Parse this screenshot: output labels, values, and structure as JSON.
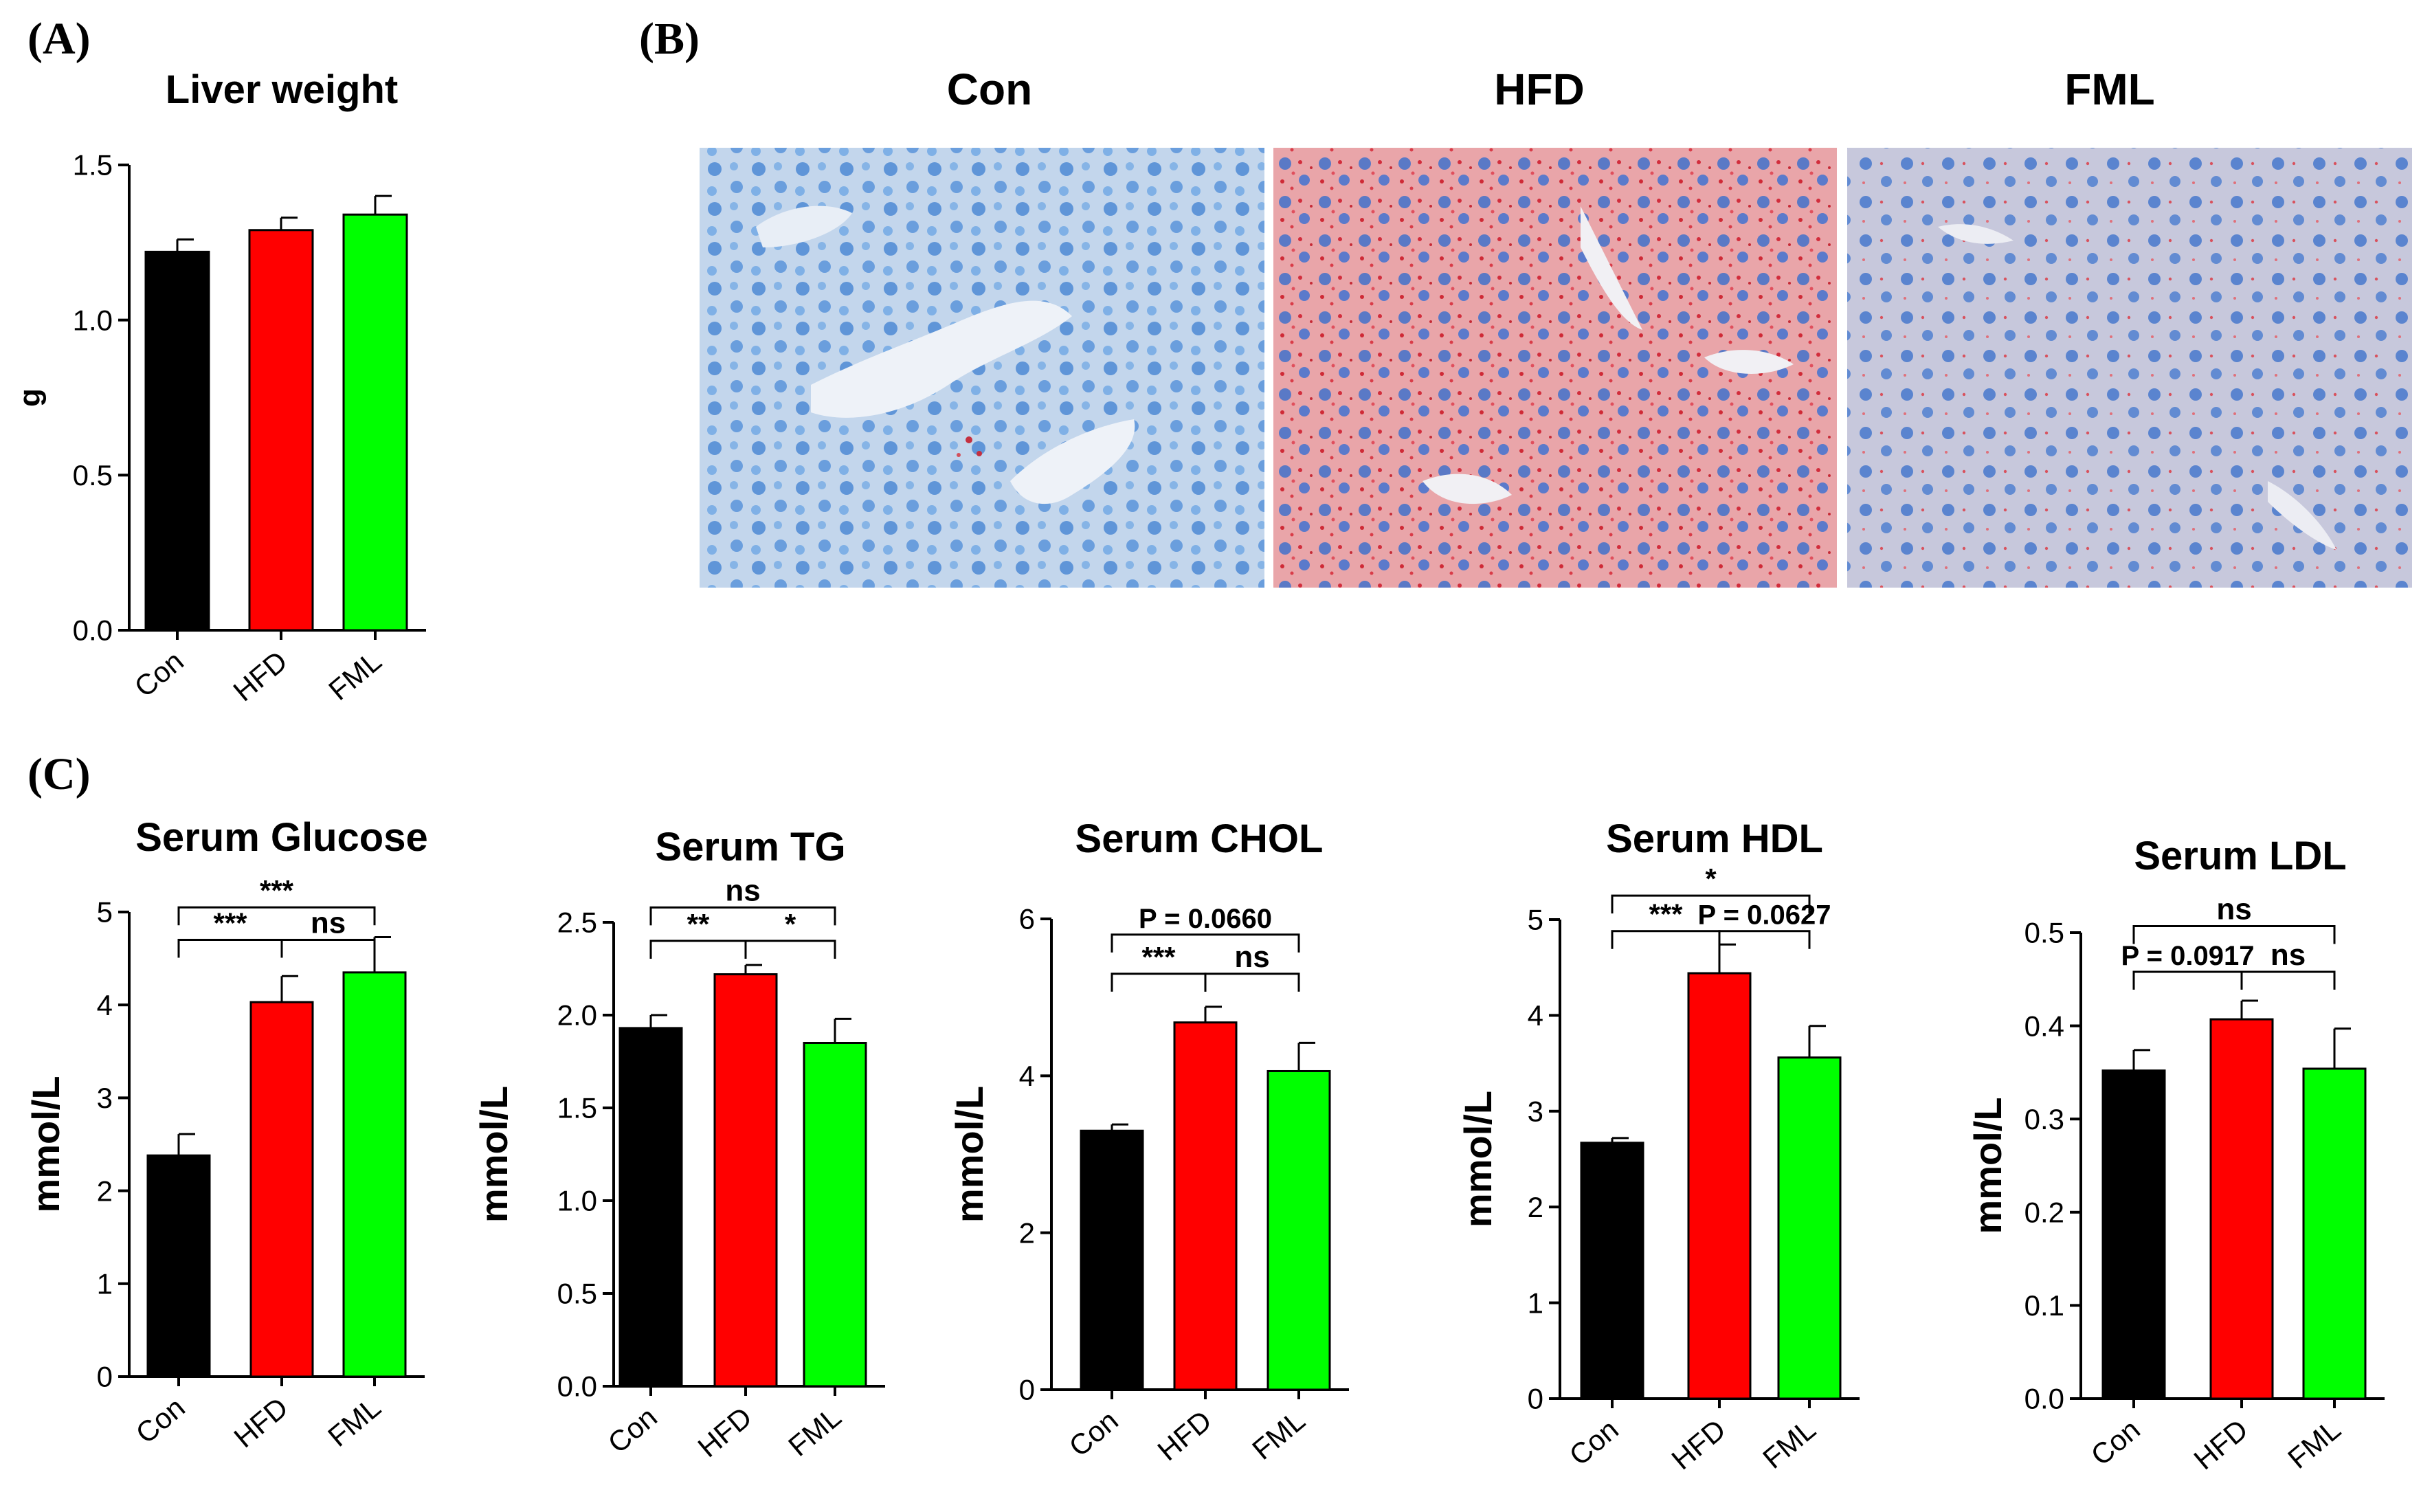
{
  "panel_labels": {
    "a": "(A)",
    "b": "(B)",
    "c": "(C)"
  },
  "histology": {
    "titles": [
      "Con",
      "HFD",
      "FML"
    ]
  },
  "colors": {
    "Con": "#000000",
    "HFD": "#ff0000",
    "FML": "#00ff00"
  },
  "chart_data": [
    {
      "id": "liver",
      "type": "bar",
      "title": "Liver weight",
      "ylabel": "g",
      "categories": [
        "Con",
        "HFD",
        "FML"
      ],
      "values": [
        1.22,
        1.29,
        1.34
      ],
      "errors": [
        0.04,
        0.04,
        0.06
      ],
      "ylim": [
        0,
        1.5
      ],
      "yticks": [
        "0.0",
        "0.5",
        "1.0",
        "1.5"
      ],
      "comparisons": []
    },
    {
      "id": "glucose",
      "type": "bar",
      "title": "Serum Glucose",
      "ylabel": "mmol/L",
      "categories": [
        "Con",
        "HFD",
        "FML"
      ],
      "values": [
        2.38,
        4.03,
        4.35
      ],
      "errors": [
        0.23,
        0.28,
        0.38
      ],
      "ylim": [
        0,
        5
      ],
      "yticks": [
        "0",
        "1",
        "2",
        "3",
        "4",
        "5"
      ],
      "comparisons": [
        {
          "from": 0,
          "to": 1,
          "label": "***",
          "level": 4.7
        },
        {
          "from": 1,
          "to": 2,
          "label": "ns",
          "level": 4.7
        },
        {
          "from": 0,
          "to": 2,
          "label": "***",
          "level": 5.05
        }
      ]
    },
    {
      "id": "tg",
      "type": "bar",
      "title": "Serum TG",
      "ylabel": "mmol/L",
      "categories": [
        "Con",
        "HFD",
        "FML"
      ],
      "values": [
        1.93,
        2.22,
        1.85
      ],
      "errors": [
        0.07,
        0.05,
        0.13
      ],
      "ylim": [
        0,
        2.5
      ],
      "yticks": [
        "0.0",
        "0.5",
        "1.0",
        "1.5",
        "2.0",
        "2.5"
      ],
      "comparisons": [
        {
          "from": 0,
          "to": 1,
          "label": "**",
          "level": 2.4
        },
        {
          "from": 1,
          "to": 2,
          "label": "*",
          "level": 2.4
        },
        {
          "from": 0,
          "to": 2,
          "label": "ns",
          "level": 2.58
        }
      ]
    },
    {
      "id": "chol",
      "type": "bar",
      "title": "Serum CHOL",
      "ylabel": "mmol/L",
      "categories": [
        "Con",
        "HFD",
        "FML"
      ],
      "values": [
        3.3,
        4.68,
        4.06
      ],
      "errors": [
        0.08,
        0.2,
        0.36
      ],
      "ylim": [
        0,
        6
      ],
      "yticks": [
        "0",
        "2",
        "4",
        "6"
      ],
      "comparisons": [
        {
          "from": 0,
          "to": 1,
          "label": "***",
          "level": 5.3
        },
        {
          "from": 1,
          "to": 2,
          "label": "ns",
          "level": 5.3
        },
        {
          "from": 0,
          "to": 2,
          "label": "P = 0.0660",
          "level": 5.8
        }
      ]
    },
    {
      "id": "hdl",
      "type": "bar",
      "title": "Serum HDL",
      "ylabel": "mmol/L",
      "categories": [
        "Con",
        "HFD",
        "FML"
      ],
      "values": [
        2.67,
        4.44,
        3.56
      ],
      "errors": [
        0.05,
        0.3,
        0.33
      ],
      "ylim": [
        0,
        5
      ],
      "yticks": [
        "0",
        "1",
        "2",
        "3",
        "4",
        "5"
      ],
      "comparisons": [
        {
          "from": 0,
          "to": 1,
          "label": "***",
          "level": 4.88
        },
        {
          "from": 1,
          "to": 2,
          "label": "P = 0.0627",
          "level": 4.88
        },
        {
          "from": 0,
          "to": 2,
          "label": "*",
          "level": 5.25
        }
      ]
    },
    {
      "id": "ldl",
      "type": "bar",
      "title": "Serum LDL",
      "ylabel": "mmol/L",
      "categories": [
        "Con",
        "HFD",
        "FML"
      ],
      "values": [
        0.352,
        0.407,
        0.354
      ],
      "errors": [
        0.022,
        0.02,
        0.043
      ],
      "ylim": [
        0,
        0.5
      ],
      "yticks": [
        "0.0",
        "0.1",
        "0.2",
        "0.3",
        "0.4",
        "0.5"
      ],
      "comparisons": [
        {
          "from": 0,
          "to": 1,
          "label": "P = 0.0917",
          "level": 0.458
        },
        {
          "from": 1,
          "to": 2,
          "label": "ns",
          "level": 0.458
        },
        {
          "from": 0,
          "to": 2,
          "label": "ns",
          "level": 0.507
        }
      ]
    }
  ]
}
